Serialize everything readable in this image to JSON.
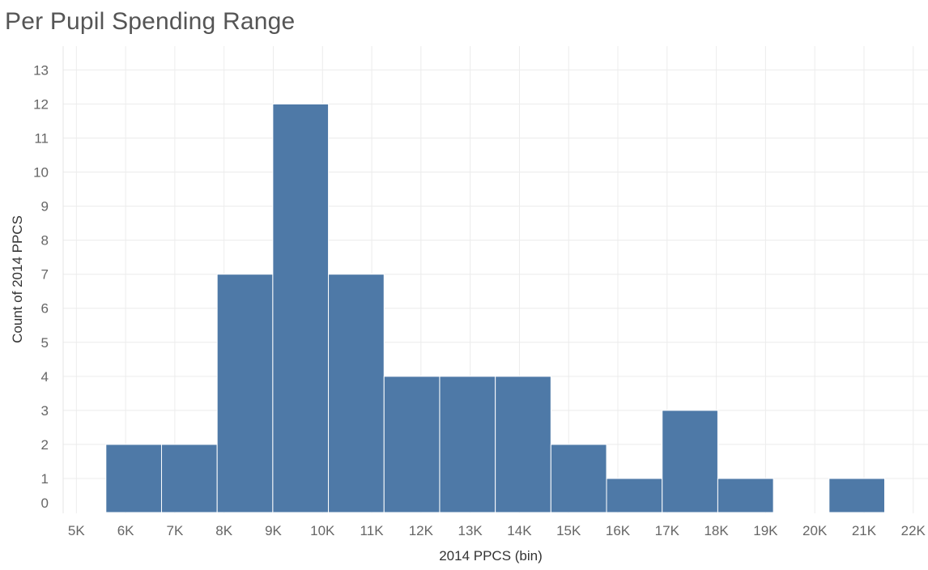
{
  "chart_data": {
    "type": "bar",
    "title": "Per Pupil Spending Range",
    "xlabel": "2014 PPCS (bin)",
    "ylabel": "Count of 2014 PPCS",
    "bin_width": 1130,
    "bins": [
      {
        "start": 5600,
        "count": 2
      },
      {
        "start": 6730,
        "count": 2
      },
      {
        "start": 7860,
        "count": 7
      },
      {
        "start": 8990,
        "count": 12
      },
      {
        "start": 10120,
        "count": 7
      },
      {
        "start": 11250,
        "count": 4
      },
      {
        "start": 12380,
        "count": 4
      },
      {
        "start": 13510,
        "count": 4
      },
      {
        "start": 14640,
        "count": 2
      },
      {
        "start": 15770,
        "count": 1
      },
      {
        "start": 16900,
        "count": 3
      },
      {
        "start": 18030,
        "count": 1
      },
      {
        "start": 19160,
        "count": 0
      },
      {
        "start": 20290,
        "count": 1
      }
    ],
    "x_ticks": [
      5000,
      6000,
      7000,
      8000,
      9000,
      10000,
      11000,
      12000,
      13000,
      14000,
      15000,
      16000,
      17000,
      18000,
      19000,
      20000,
      21000,
      22000
    ],
    "x_tick_labels": [
      "5K",
      "6K",
      "7K",
      "8K",
      "9K",
      "10K",
      "11K",
      "12K",
      "13K",
      "14K",
      "15K",
      "16K",
      "17K",
      "18K",
      "19K",
      "20K",
      "21K",
      "22K"
    ],
    "y_ticks": [
      0,
      1,
      2,
      3,
      4,
      5,
      6,
      7,
      8,
      9,
      10,
      11,
      12,
      13
    ],
    "xlim": [
      4600,
      22300
    ],
    "ylim": [
      0,
      13.7
    ],
    "grid": true,
    "bar_color": "#4e79a7",
    "gridline_color": "#ececec"
  }
}
